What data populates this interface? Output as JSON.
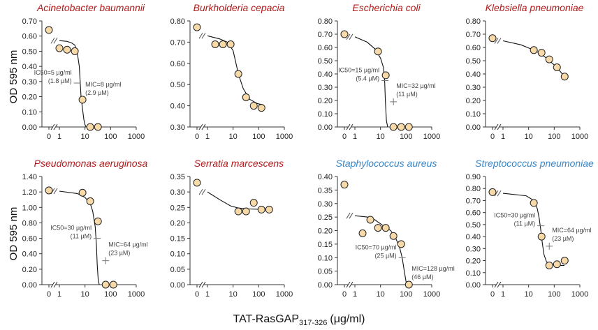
{
  "figure": {
    "ylabel": "OD 595 nm",
    "xlabel_main": "TAT-RasGAP",
    "xlabel_sub": "317-326",
    "xlabel_unit": "(μg/ml)",
    "colors": {
      "gram_negative": "#b31b1b",
      "gram_positive": "#3a87c8",
      "marker_fill": "#f8d9a8",
      "curve": "#111111"
    }
  },
  "chart_data": [
    {
      "type": "scatter",
      "title": "Acinetobacter baumannii",
      "title_color": "#b31b1b",
      "ylim": [
        0,
        0.7
      ],
      "yticks": [
        "0.00",
        "0.10",
        "0.20",
        "0.30",
        "0.40",
        "0.50",
        "0.60",
        "0.70"
      ],
      "xticks": [
        "0",
        "1",
        "10",
        "100",
        "1000"
      ],
      "points": [
        [
          0,
          0.64
        ],
        [
          1,
          0.52
        ],
        [
          2,
          0.51
        ],
        [
          4,
          0.5
        ],
        [
          8,
          0.18
        ],
        [
          16,
          0
        ],
        [
          32,
          0
        ]
      ],
      "curve": [
        [
          1,
          0.57
        ],
        [
          2,
          0.565
        ],
        [
          3,
          0.555
        ],
        [
          4,
          0.54
        ],
        [
          5,
          0.49
        ],
        [
          6,
          0.4
        ],
        [
          7,
          0.2
        ],
        [
          8,
          0.12
        ],
        [
          9,
          0.05
        ],
        [
          10,
          0.015
        ],
        [
          11,
          0
        ]
      ],
      "annotations": [
        {
          "lines": [
            "IC50=5 µg/ml",
            "(1.8 µM)"
          ],
          "x": 5,
          "y": 0.29
        },
        {
          "lines": [
            "MIC=8 µg/ml",
            "(2.9 µM)"
          ],
          "x": 8,
          "y": 0.175
        }
      ]
    },
    {
      "type": "scatter",
      "title": "Burkholderia cepacia",
      "title_color": "#b31b1b",
      "ylim": [
        0.3,
        0.8
      ],
      "yticks": [
        "0.30",
        "0.40",
        "0.50",
        "0.60",
        "0.70",
        "0.80"
      ],
      "xticks": [
        "0",
        "1",
        "10",
        "100",
        "1000"
      ],
      "points": [
        [
          0,
          0.77
        ],
        [
          2,
          0.69
        ],
        [
          4,
          0.69
        ],
        [
          8,
          0.69
        ],
        [
          16,
          0.55
        ],
        [
          32,
          0.44
        ],
        [
          64,
          0.4
        ],
        [
          128,
          0.39
        ]
      ],
      "curve": [
        [
          1,
          0.73
        ],
        [
          3,
          0.715
        ],
        [
          6,
          0.7
        ],
        [
          10,
          0.66
        ],
        [
          16,
          0.55
        ],
        [
          25,
          0.48
        ],
        [
          45,
          0.43
        ],
        [
          90,
          0.41
        ],
        [
          140,
          0.405
        ]
      ],
      "annotations": []
    },
    {
      "type": "scatter",
      "title": "Escherichia coli",
      "title_color": "#b31b1b",
      "ylim": [
        0,
        0.8
      ],
      "yticks": [
        "0.00",
        "0.10",
        "0.20",
        "0.30",
        "0.40",
        "0.50",
        "0.60",
        "0.70",
        "0.80"
      ],
      "xticks": [
        "0",
        "1",
        "10",
        "100",
        "1000"
      ],
      "points": [
        [
          0,
          0.7
        ],
        [
          8,
          0.57
        ],
        [
          16,
          0.39
        ],
        [
          32,
          0
        ],
        [
          64,
          0
        ],
        [
          128,
          0
        ]
      ],
      "curve": [
        [
          1,
          0.68
        ],
        [
          3,
          0.64
        ],
        [
          6,
          0.59
        ],
        [
          10,
          0.52
        ],
        [
          13,
          0.45
        ],
        [
          14.5,
          0.35
        ],
        [
          15.5,
          0.2
        ],
        [
          17,
          0.05
        ],
        [
          19,
          0
        ]
      ],
      "annotations": [
        {
          "lines": [
            "IC50=15 µg/ml",
            "(5.4 µM)"
          ],
          "x": 15,
          "y": 0.35
        },
        {
          "lines": [
            "MIC=32 µg/ml",
            "(11 µM)"
          ],
          "x": 32,
          "y": 0.19
        }
      ]
    },
    {
      "type": "scatter",
      "title": "Klebsiella pneumoniae",
      "title_color": "#b31b1b",
      "ylim": [
        0,
        0.8
      ],
      "yticks": [
        "0.00",
        "0.10",
        "0.20",
        "0.30",
        "0.40",
        "0.50",
        "0.60",
        "0.70",
        "0.80"
      ],
      "xticks": [
        "0",
        "1",
        "10",
        "100",
        "1000"
      ],
      "points": [
        [
          0,
          0.67
        ],
        [
          16,
          0.58
        ],
        [
          32,
          0.56
        ],
        [
          64,
          0.51
        ],
        [
          128,
          0.45
        ],
        [
          256,
          0.38
        ]
      ],
      "curve": [
        [
          1,
          0.65
        ],
        [
          5,
          0.62
        ],
        [
          16,
          0.58
        ],
        [
          32,
          0.55
        ],
        [
          64,
          0.5
        ],
        [
          128,
          0.45
        ],
        [
          250,
          0.38
        ]
      ],
      "annotations": []
    },
    {
      "type": "scatter",
      "title": "Pseudomonas aeruginosa",
      "title_color": "#b31b1b",
      "ylim": [
        0,
        1.4
      ],
      "yticks": [
        "0.00",
        "0.20",
        "0.40",
        "0.60",
        "0.80",
        "1.00",
        "1.20",
        "1.40"
      ],
      "xticks": [
        "0",
        "1",
        "10",
        "100",
        "1000"
      ],
      "points": [
        [
          0,
          1.22
        ],
        [
          8,
          1.19
        ],
        [
          16,
          1.08
        ],
        [
          32,
          0.82
        ],
        [
          64,
          0
        ],
        [
          128,
          0
        ]
      ],
      "curve": [
        [
          1,
          1.21
        ],
        [
          5,
          1.18
        ],
        [
          10,
          1.13
        ],
        [
          16,
          1.05
        ],
        [
          20,
          0.95
        ],
        [
          25,
          0.75
        ],
        [
          28,
          0.5
        ],
        [
          30,
          0.25
        ],
        [
          33,
          0.05
        ],
        [
          36,
          0
        ]
      ],
      "annotations": [
        {
          "lines": [
            "IC50=30 µg/ml",
            "(11 µM)"
          ],
          "x": 30,
          "y": 0.6
        },
        {
          "lines": [
            "MIC=64 µg/ml",
            "(23 µM)"
          ],
          "x": 64,
          "y": 0.31
        }
      ]
    },
    {
      "type": "scatter",
      "title": "Serratia marcescens",
      "title_color": "#b31b1b",
      "ylim": [
        0,
        0.35
      ],
      "yticks": [
        "0.00",
        "0.05",
        "0.10",
        "0.15",
        "0.20",
        "0.25",
        "0.30",
        "0.35"
      ],
      "xticks": [
        "0",
        "1",
        "10",
        "100",
        "1000"
      ],
      "points": [
        [
          0,
          0.33
        ],
        [
          16,
          0.237
        ],
        [
          32,
          0.237
        ],
        [
          64,
          0.265
        ],
        [
          128,
          0.243
        ],
        [
          256,
          0.243
        ]
      ],
      "curve": [
        [
          1,
          0.3
        ],
        [
          3,
          0.275
        ],
        [
          8,
          0.255
        ],
        [
          16,
          0.248
        ],
        [
          40,
          0.245
        ],
        [
          100,
          0.244
        ],
        [
          250,
          0.244
        ]
      ],
      "annotations": []
    },
    {
      "type": "scatter",
      "title": "Staphylococcus aureus",
      "title_color": "#3a87c8",
      "ylim": [
        0,
        0.4
      ],
      "yticks": [
        "0.00",
        "0.05",
        "0.10",
        "0.15",
        "0.20",
        "0.25",
        "0.30",
        "0.35",
        "0.40"
      ],
      "xticks": [
        "0",
        "1",
        "10",
        "100",
        "1000"
      ],
      "points": [
        [
          0,
          0.37
        ],
        [
          2,
          0.19
        ],
        [
          4,
          0.24
        ],
        [
          8,
          0.21
        ],
        [
          16,
          0.21
        ],
        [
          32,
          0.18
        ],
        [
          64,
          0.15
        ],
        [
          128,
          0
        ]
      ],
      "curve": [
        [
          1,
          0.255
        ],
        [
          3,
          0.25
        ],
        [
          6,
          0.24
        ],
        [
          12,
          0.22
        ],
        [
          25,
          0.2
        ],
        [
          40,
          0.17
        ],
        [
          55,
          0.14
        ],
        [
          70,
          0.1
        ],
        [
          85,
          0.05
        ],
        [
          100,
          0.01
        ],
        [
          110,
          0
        ]
      ],
      "annotations": [
        {
          "lines": [
            "IC50=70 µg/ml",
            "(25 µM)"
          ],
          "x": 70,
          "y": 0.1
        },
        {
          "lines": [
            "MIC=128 µg/ml",
            "(46 µM)"
          ],
          "x": 128,
          "y": 0.0
        }
      ]
    },
    {
      "type": "scatter",
      "title": "Streptococcus pneumoniae",
      "title_color": "#3a87c8",
      "ylim": [
        0,
        0.9
      ],
      "yticks": [
        "0.00",
        "0.10",
        "0.20",
        "0.30",
        "0.40",
        "0.50",
        "0.60",
        "0.70",
        "0.80",
        "0.90"
      ],
      "xticks": [
        "0",
        "1",
        "10",
        "100",
        "1000"
      ],
      "points": [
        [
          0,
          0.77
        ],
        [
          16,
          0.68
        ],
        [
          32,
          0.4
        ],
        [
          64,
          0.16
        ],
        [
          128,
          0.17
        ],
        [
          256,
          0.2
        ]
      ],
      "curve": [
        [
          1,
          0.76
        ],
        [
          8,
          0.74
        ],
        [
          16,
          0.7
        ],
        [
          22,
          0.63
        ],
        [
          26,
          0.55
        ],
        [
          30,
          0.45
        ],
        [
          34,
          0.35
        ],
        [
          40,
          0.25
        ],
        [
          50,
          0.19
        ],
        [
          70,
          0.17
        ],
        [
          120,
          0.16
        ],
        [
          250,
          0.16
        ]
      ],
      "annotations": [
        {
          "lines": [
            "IC50=30 µg/ml",
            "(11 µM)"
          ],
          "x": 30,
          "y": 0.49
        },
        {
          "lines": [
            "MIC=64 µg/ml",
            "(23 µM)"
          ],
          "x": 64,
          "y": 0.32
        }
      ]
    }
  ]
}
